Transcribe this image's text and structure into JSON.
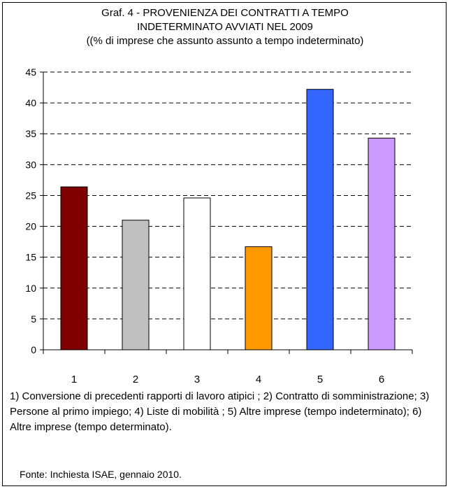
{
  "chart_data": {
    "type": "bar",
    "title": [
      "Graf. 4 - PROVENIENZA DEI CONTRATTI A TEMPO",
      "INDETERMINATO AVVIATI NEL 2009",
      "((% di imprese che assunto assunto a tempo indeterminato)"
    ],
    "categories": [
      "1",
      "2",
      "3",
      "4",
      "5",
      "6"
    ],
    "values": [
      26.4,
      21.0,
      24.6,
      16.7,
      42.2,
      34.3
    ],
    "bar_colors": [
      "#800000",
      "#c0c0c0",
      "#ffffff",
      "#ff9900",
      "#3366ff",
      "#cc99ff"
    ],
    "ylim": [
      0,
      45
    ],
    "yticks": [
      0,
      5,
      10,
      15,
      20,
      25,
      30,
      35,
      40,
      45
    ],
    "grid": "dashed horizontal",
    "xlabel": "",
    "ylabel": ""
  },
  "note": "1) Conversione di precedenti rapporti di lavoro atipici ; 2) Contratto di somministrazione; 3) Persone al primo impiego; 4) Liste di mobilità ; 5) Altre imprese (tempo indeterminato); 6) Altre imprese (tempo determinato).",
  "source": "Fonte: Inchiesta ISAE, gennaio 2010."
}
